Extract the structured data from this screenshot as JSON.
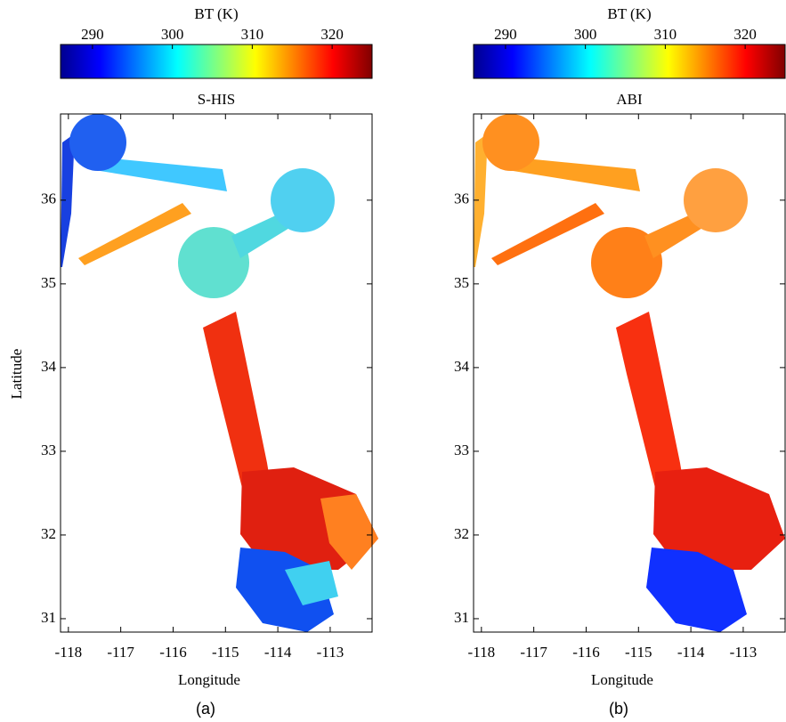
{
  "chart_data": [
    {
      "type": "heatmap",
      "title": "S-HIS",
      "caption": "(a)",
      "xlabel": "Longitude",
      "ylabel": "Latitude",
      "xlim": [
        -118.15,
        -112.2
      ],
      "xticks": [
        -118,
        -117,
        -116,
        -115,
        -114,
        -113
      ],
      "ylim": [
        30.84,
        37.03
      ],
      "yticks": [
        31,
        32,
        33,
        34,
        35,
        36
      ],
      "colorbar": {
        "label": "BT (K)",
        "lim": [
          286,
          325
        ],
        "ticks": [
          290,
          300,
          310,
          320
        ],
        "colors": [
          "#00008f",
          "#0000ff",
          "#0080ff",
          "#00ffff",
          "#80ff80",
          "#ffff00",
          "#ff8000",
          "#ff0000",
          "#800000"
        ]
      }
    },
    {
      "type": "heatmap",
      "title": "ABI",
      "caption": "(b)",
      "xlabel": "Longitude",
      "xlim": [
        -118.15,
        -112.2
      ],
      "xticks": [
        -118,
        -117,
        -116,
        -115,
        -114,
        -113
      ],
      "ylim": [
        30.84,
        37.03
      ],
      "yticks": [
        31,
        32,
        33,
        34,
        35,
        36
      ],
      "colorbar": {
        "label": "BT (K)",
        "lim": [
          286,
          325
        ],
        "ticks": [
          290,
          300,
          310,
          320
        ],
        "colors": [
          "#00008f",
          "#0000ff",
          "#0080ff",
          "#00ffff",
          "#80ff80",
          "#ffff00",
          "#ff8000",
          "#ff0000",
          "#800000"
        ]
      }
    }
  ]
}
